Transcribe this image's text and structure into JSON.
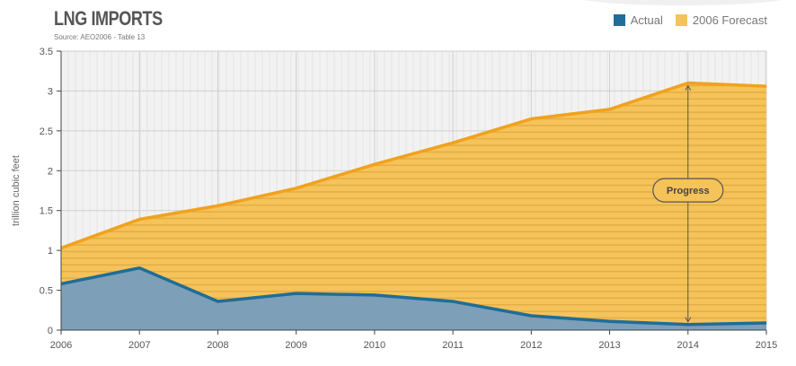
{
  "header": {
    "title": "LNG IMPORTS",
    "source": "Source: AEO2006 - Table 13"
  },
  "legend": [
    {
      "label": "Actual",
      "color": "#1f6d99"
    },
    {
      "label": "2006 Forecast",
      "color": "#f5c35a"
    }
  ],
  "chart_data": {
    "type": "area",
    "title": "LNG IMPORTS",
    "subtitle": "Source: AEO2006 - Table 13",
    "xlabel": "",
    "ylabel": "trillion cubic feet",
    "x": [
      2006,
      2007,
      2008,
      2009,
      2010,
      2011,
      2012,
      2013,
      2014,
      2015
    ],
    "xlim": [
      2006,
      2015
    ],
    "ylim": [
      0,
      3.5
    ],
    "yticks": [
      0,
      0.5,
      1,
      1.5,
      2,
      2.5,
      3,
      3.5
    ],
    "ytick_labels": [
      "0",
      "0.5",
      "1",
      "1.5",
      "2",
      "2.5",
      "3",
      "3.5"
    ],
    "xtick_labels": [
      "2006",
      "2007",
      "2008",
      "2009",
      "2010",
      "2011",
      "2012",
      "2013",
      "2014",
      "2015"
    ],
    "grid": true,
    "legend_position": "top-right",
    "series": [
      {
        "name": "2006 Forecast",
        "color": "#f5c35a",
        "line_color": "#f0a21e",
        "values": [
          1.03,
          1.39,
          1.56,
          1.78,
          2.08,
          2.35,
          2.65,
          2.77,
          3.1,
          3.06
        ]
      },
      {
        "name": "Actual",
        "color": "#7d9fb7",
        "line_color": "#1f6d99",
        "values": [
          0.58,
          0.78,
          0.36,
          0.46,
          0.44,
          0.36,
          0.18,
          0.11,
          0.07,
          0.09
        ]
      }
    ],
    "annotations": [
      {
        "text": "Progress",
        "x": 2014,
        "y_from": 0.07,
        "y_to": 3.1
      }
    ]
  }
}
